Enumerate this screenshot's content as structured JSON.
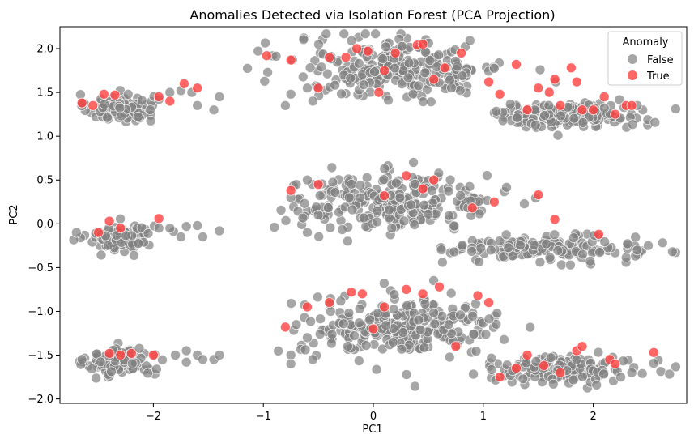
{
  "chart_data": {
    "type": "scatter",
    "title": "Anomalies Detected via Isolation Forest (PCA Projection)",
    "xlabel": "PC1",
    "ylabel": "PC2",
    "xlim": [
      -2.85,
      2.85
    ],
    "ylim": [
      -2.05,
      2.25
    ],
    "x_ticks": [
      -2,
      -1,
      0,
      1,
      2
    ],
    "x_tick_labels": [
      "−2",
      "−1",
      "0",
      "1",
      "2"
    ],
    "y_ticks": [
      -2.0,
      -1.5,
      -1.0,
      -0.5,
      0.0,
      0.5,
      1.0,
      1.5,
      2.0
    ],
    "y_tick_labels": [
      "−2.0",
      "−1.5",
      "−1.0",
      "−0.5",
      "0.0",
      "0.5",
      "1.0",
      "1.5",
      "2.0"
    ],
    "grid": false,
    "legend": {
      "title": "Anomaly",
      "placement": "top-right",
      "entries": [
        "False",
        "True"
      ]
    },
    "colors": {
      "False": "#808080",
      "True": "#ff4040"
    },
    "clusters_false": [
      {
        "cx": -2.3,
        "cy": 1.32,
        "sx": 0.15,
        "sy": 0.08,
        "n": 100
      },
      {
        "cx": -2.3,
        "cy": -0.15,
        "sx": 0.15,
        "sy": 0.08,
        "n": 100
      },
      {
        "cx": -2.3,
        "cy": -1.58,
        "sx": 0.15,
        "sy": 0.08,
        "n": 100
      },
      {
        "cx": 0.25,
        "cy": 1.78,
        "sx": 0.48,
        "sy": 0.18,
        "n": 260
      },
      {
        "cx": 1.75,
        "cy": 1.24,
        "sx": 0.35,
        "sy": 0.07,
        "n": 140
      },
      {
        "cx": 0.2,
        "cy": 0.25,
        "sx": 0.45,
        "sy": 0.16,
        "n": 260
      },
      {
        "cx": 1.55,
        "cy": -0.28,
        "sx": 0.42,
        "sy": 0.07,
        "n": 160
      },
      {
        "cx": 0.25,
        "cy": -1.18,
        "sx": 0.45,
        "sy": 0.16,
        "n": 260
      },
      {
        "cx": 1.75,
        "cy": -1.66,
        "sx": 0.35,
        "sy": 0.07,
        "n": 150
      }
    ],
    "sparse_false": [
      [
        -1.85,
        1.5
      ],
      [
        -1.75,
        1.52
      ],
      [
        -1.65,
        1.5
      ],
      [
        -1.6,
        1.35
      ],
      [
        -1.45,
        1.3
      ],
      [
        -1.4,
        1.45
      ],
      [
        -1.95,
        1.42
      ],
      [
        -2.65,
        1.38
      ],
      [
        -1.95,
        -0.05
      ],
      [
        -1.85,
        -0.05
      ],
      [
        -1.7,
        -0.03
      ],
      [
        -1.6,
        -0.02
      ],
      [
        -1.55,
        -0.15
      ],
      [
        -1.75,
        -0.15
      ],
      [
        -1.4,
        -0.08
      ],
      [
        -0.9,
        -0.04
      ],
      [
        -2.7,
        -0.1
      ],
      [
        -1.8,
        -1.5
      ],
      [
        -1.7,
        -1.45
      ],
      [
        -1.6,
        -1.5
      ],
      [
        -1.55,
        -1.55
      ],
      [
        -1.45,
        -1.55
      ],
      [
        -1.4,
        -1.5
      ],
      [
        -1.7,
        -1.58
      ],
      [
        -2.65,
        -1.55
      ],
      [
        -0.75,
        1.48
      ],
      [
        -0.8,
        1.35
      ],
      [
        -0.6,
        1.55
      ],
      [
        -0.55,
        1.4
      ],
      [
        -0.75,
        0.3
      ],
      [
        -0.7,
        0.45
      ],
      [
        -0.6,
        -0.1
      ],
      [
        -0.5,
        0.1
      ],
      [
        -0.6,
        0.5
      ],
      [
        -0.75,
        -1.5
      ],
      [
        -0.75,
        -1.6
      ],
      [
        -0.7,
        -1.15
      ],
      [
        -0.6,
        -1.3
      ],
      [
        -0.55,
        -1.55
      ],
      [
        2.45,
        1.3
      ],
      [
        2.4,
        1.35
      ],
      [
        2.5,
        -0.25
      ],
      [
        2.4,
        -0.3
      ],
      [
        2.35,
        -1.7
      ],
      [
        2.25,
        -1.75
      ]
    ],
    "anomalies": [
      [
        -2.65,
        1.38
      ],
      [
        -2.55,
        1.35
      ],
      [
        -2.45,
        1.48
      ],
      [
        -2.35,
        1.47
      ],
      [
        -1.95,
        1.45
      ],
      [
        -1.85,
        1.4
      ],
      [
        -1.72,
        1.6
      ],
      [
        -1.6,
        1.55
      ],
      [
        -2.5,
        -0.1
      ],
      [
        -2.4,
        0.03
      ],
      [
        -2.3,
        -0.05
      ],
      [
        -1.95,
        0.06
      ],
      [
        -2.4,
        -1.48
      ],
      [
        -2.3,
        -1.5
      ],
      [
        -2.2,
        -1.48
      ],
      [
        -2.0,
        -1.5
      ],
      [
        -0.97,
        1.92
      ],
      [
        -0.75,
        1.87
      ],
      [
        -0.5,
        1.55
      ],
      [
        -0.4,
        1.9
      ],
      [
        -0.25,
        1.9
      ],
      [
        -0.15,
        2.0
      ],
      [
        -0.05,
        1.97
      ],
      [
        0.05,
        1.5
      ],
      [
        0.1,
        1.75
      ],
      [
        0.2,
        1.95
      ],
      [
        0.4,
        2.04
      ],
      [
        0.45,
        2.05
      ],
      [
        0.55,
        1.65
      ],
      [
        0.65,
        1.78
      ],
      [
        0.8,
        1.95
      ],
      [
        1.05,
        1.62
      ],
      [
        1.15,
        1.48
      ],
      [
        1.3,
        1.82
      ],
      [
        1.4,
        1.3
      ],
      [
        1.5,
        1.55
      ],
      [
        1.6,
        1.5
      ],
      [
        1.65,
        1.65
      ],
      [
        1.7,
        1.35
      ],
      [
        1.8,
        1.78
      ],
      [
        1.85,
        1.62
      ],
      [
        1.9,
        1.3
      ],
      [
        2.0,
        1.3
      ],
      [
        2.1,
        1.45
      ],
      [
        2.2,
        1.25
      ],
      [
        2.3,
        1.35
      ],
      [
        2.35,
        1.35
      ],
      [
        -0.75,
        0.38
      ],
      [
        -0.5,
        0.45
      ],
      [
        0.1,
        0.32
      ],
      [
        0.3,
        0.55
      ],
      [
        0.45,
        0.4
      ],
      [
        0.55,
        0.5
      ],
      [
        0.9,
        0.18
      ],
      [
        1.1,
        0.25
      ],
      [
        1.5,
        0.33
      ],
      [
        1.65,
        0.05
      ],
      [
        2.05,
        -0.12
      ],
      [
        -0.8,
        -1.18
      ],
      [
        -0.6,
        -0.95
      ],
      [
        -0.4,
        -0.9
      ],
      [
        -0.2,
        -0.78
      ],
      [
        -0.1,
        -0.8
      ],
      [
        0.0,
        -1.2
      ],
      [
        0.1,
        -0.95
      ],
      [
        0.3,
        -0.75
      ],
      [
        0.45,
        -0.8
      ],
      [
        0.6,
        -0.72
      ],
      [
        0.75,
        -1.4
      ],
      [
        0.95,
        -0.82
      ],
      [
        1.05,
        -0.9
      ],
      [
        1.15,
        -1.75
      ],
      [
        1.3,
        -1.65
      ],
      [
        1.4,
        -1.5
      ],
      [
        1.55,
        -1.62
      ],
      [
        1.7,
        -1.7
      ],
      [
        1.85,
        -1.45
      ],
      [
        1.9,
        -1.4
      ],
      [
        2.15,
        -1.55
      ],
      [
        2.2,
        -1.6
      ],
      [
        2.55,
        -1.47
      ]
    ]
  }
}
